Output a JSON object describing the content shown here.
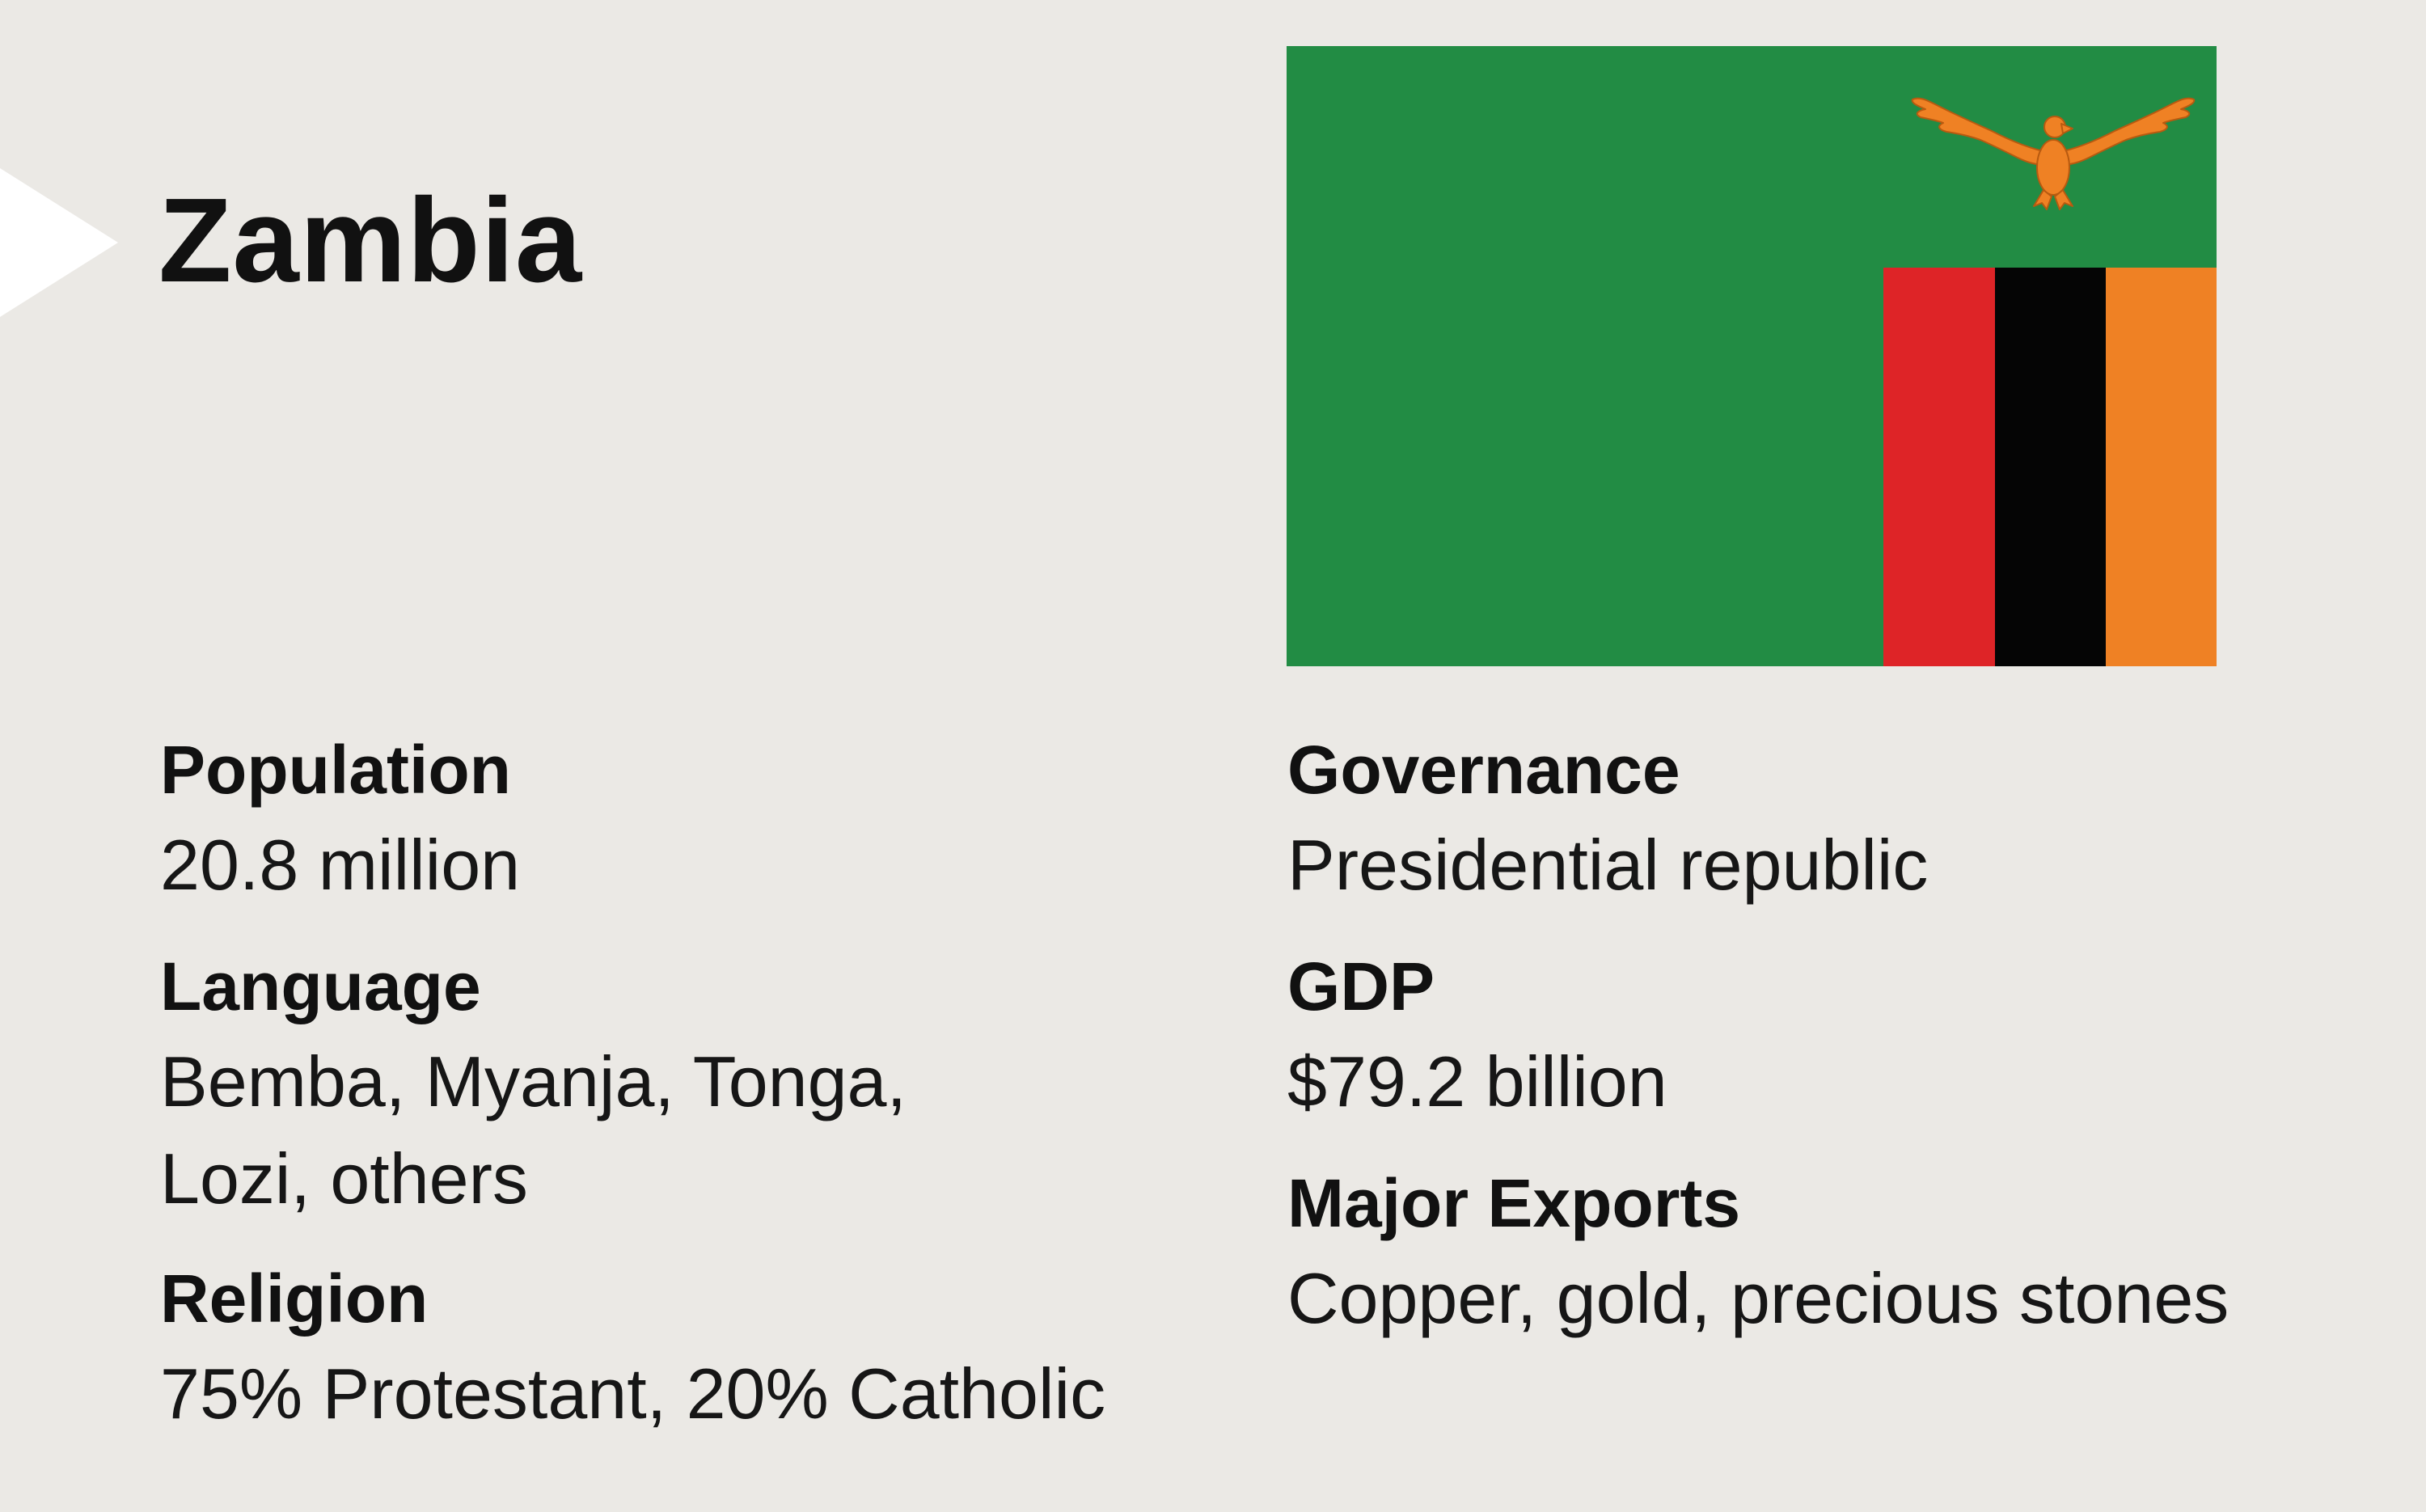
{
  "country": {
    "name": "Zambia"
  },
  "flag": {
    "colors": {
      "green": "#228c44",
      "red": "#de2427",
      "black": "#050505",
      "orange": "#ef8124",
      "eagle": "#ef8124"
    }
  },
  "facts": {
    "population": {
      "label": "Population",
      "value": "20.8 million"
    },
    "language": {
      "label": "Language",
      "value_lines": [
        "Bemba, Myanja, Tonga,",
        "Lozi, others"
      ]
    },
    "religion": {
      "label": "Religion",
      "value": "75% Protestant, 20% Catholic"
    },
    "governance": {
      "label": "Governance",
      "value": "Presidential republic"
    },
    "gdp": {
      "label": "GDP",
      "value": "$79.2 billion"
    },
    "major_exports": {
      "label": "Major Exports",
      "value": "Copper, gold, precious stones"
    }
  }
}
